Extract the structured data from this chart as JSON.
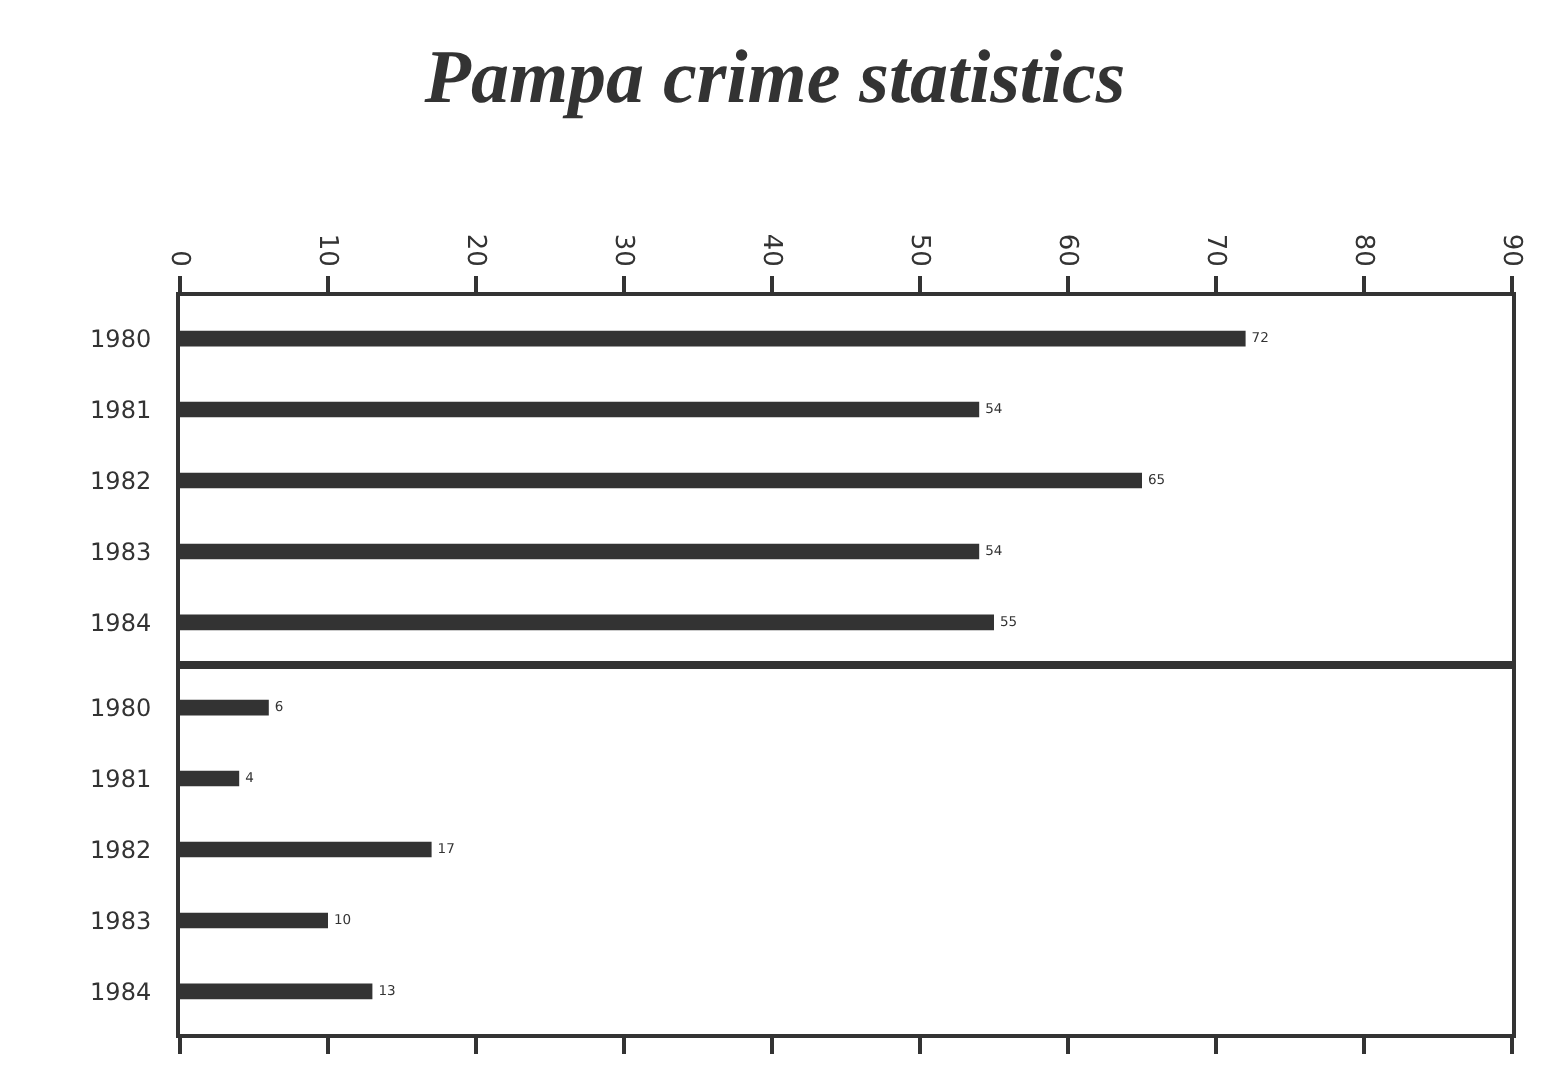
{
  "chart_data": [
    {
      "type": "bar",
      "title": "Pampa crime statistics",
      "orientation": "horizontal",
      "categories": [
        "1980",
        "1981",
        "1982",
        "1983",
        "1984"
      ],
      "values": [
        72,
        54,
        65,
        54,
        55
      ],
      "color": "#333333",
      "xlim": [
        0,
        90
      ],
      "xticks": [
        0,
        10,
        20,
        30,
        40,
        50,
        60,
        70,
        80,
        90
      ],
      "data_labels": true
    },
    {
      "type": "bar",
      "orientation": "horizontal",
      "categories": [
        "1980",
        "1981",
        "1982",
        "1983",
        "1984"
      ],
      "values": [
        6,
        4,
        17,
        10,
        13
      ],
      "color": "#333333",
      "xlim": [
        0,
        90
      ],
      "xticks": [
        0,
        10,
        20,
        30,
        40,
        50,
        60,
        70,
        80,
        90
      ],
      "data_labels": true,
      "tick_labels": "y"
    }
  ]
}
